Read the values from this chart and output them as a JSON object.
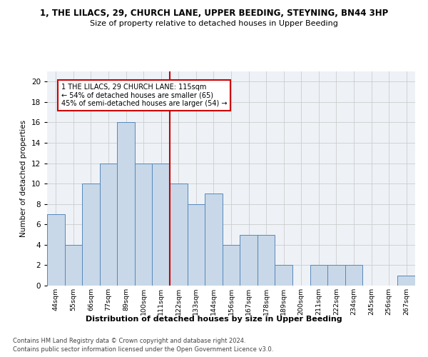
{
  "title": "1, THE LILACS, 29, CHURCH LANE, UPPER BEEDING, STEYNING, BN44 3HP",
  "subtitle": "Size of property relative to detached houses in Upper Beeding",
  "xlabel": "Distribution of detached houses by size in Upper Beeding",
  "ylabel": "Number of detached properties",
  "footer_line1": "Contains HM Land Registry data © Crown copyright and database right 2024.",
  "footer_line2": "Contains public sector information licensed under the Open Government Licence v3.0.",
  "bin_labels": [
    "44sqm",
    "55sqm",
    "66sqm",
    "77sqm",
    "89sqm",
    "100sqm",
    "111sqm",
    "122sqm",
    "133sqm",
    "144sqm",
    "156sqm",
    "167sqm",
    "178sqm",
    "189sqm",
    "200sqm",
    "211sqm",
    "222sqm",
    "234sqm",
    "245sqm",
    "256sqm",
    "267sqm"
  ],
  "bar_values": [
    7,
    4,
    10,
    12,
    16,
    12,
    12,
    10,
    8,
    9,
    4,
    5,
    5,
    2,
    0,
    2,
    2,
    2,
    0,
    0,
    1
  ],
  "bar_color": "#c8d8e8",
  "bar_edge_color": "#5588bb",
  "property_line_x": 6.5,
  "annotation_text": "1 THE LILACS, 29 CHURCH LANE: 115sqm\n← 54% of detached houses are smaller (65)\n45% of semi-detached houses are larger (54) →",
  "annotation_box_color": "#ffffff",
  "annotation_box_edge": "#cc0000",
  "reference_line_color": "#cc0000",
  "ylim": [
    0,
    21
  ],
  "yticks": [
    0,
    2,
    4,
    6,
    8,
    10,
    12,
    14,
    16,
    18,
    20
  ],
  "grid_color": "#cccccc",
  "background_color": "#eef2f7"
}
